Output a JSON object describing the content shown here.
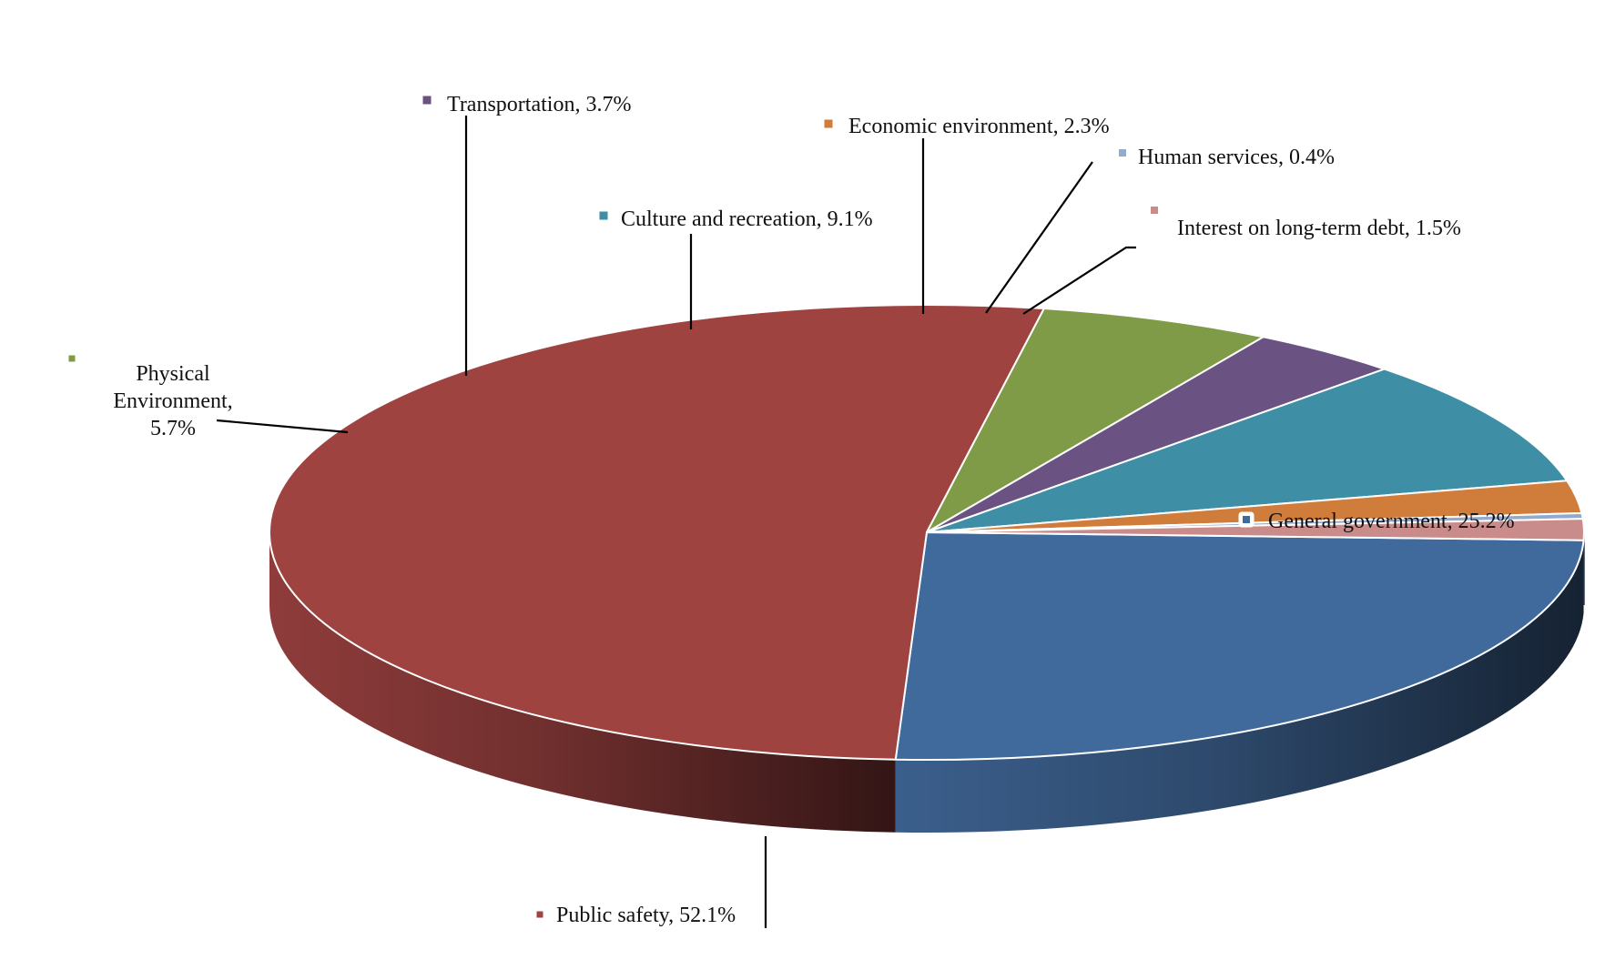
{
  "chart_data": {
    "type": "pie",
    "style": "3d",
    "slices": [
      {
        "label": "General government",
        "value": 25.2,
        "display": "General government, 25.2%",
        "color": "#416a9c"
      },
      {
        "label": "Public safety",
        "value": 52.1,
        "display": "Public safety, 52.1%",
        "color": "#9f4341"
      },
      {
        "label": "Physical Environment",
        "value": 5.7,
        "display": "Physical Environment, 5.7%",
        "display_lines": [
          "Physical",
          "Environment,",
          "5.7%"
        ],
        "color": "#809b47"
      },
      {
        "label": "Transportation",
        "value": 3.7,
        "display": "Transportation, 3.7%",
        "color": "#6a5283"
      },
      {
        "label": "Culture and recreation",
        "value": 9.1,
        "display": "Culture and recreation, 9.1%",
        "color": "#3e8ea6"
      },
      {
        "label": "Economic environment",
        "value": 2.3,
        "display": "Economic environment, 2.3%",
        "color": "#d07d3b"
      },
      {
        "label": "Human services",
        "value": 0.4,
        "display": "Human services, 0.4%",
        "color": "#93a9ce"
      },
      {
        "label": "Interest on long-term debt",
        "value": 1.5,
        "display": "Interest on long-term debt, 1.5%",
        "color": "#c98c8b"
      }
    ],
    "legend": "none",
    "data_labels": "outside-with-leader-lines"
  }
}
